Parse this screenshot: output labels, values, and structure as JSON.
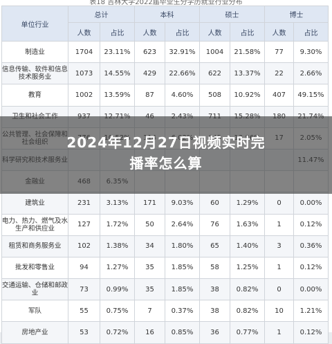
{
  "table": {
    "caption": "表18 吉林大学2022届毕业生分学历就业行业分布",
    "header_industry": "单位行业",
    "groups": [
      "总计",
      "本科",
      "硕士",
      "博士"
    ],
    "subheaders": [
      "人数",
      "占比"
    ],
    "rows": [
      {
        "industry": "制造业",
        "cells": [
          "1704",
          "23.11%",
          "623",
          "32.91%",
          "1004",
          "21.58%",
          "77",
          "9.30%"
        ]
      },
      {
        "industry": "信息传输、软件和信息技术服务业",
        "cells": [
          "1073",
          "14.55%",
          "429",
          "22.66%",
          "622",
          "13.37%",
          "22",
          "2.66%"
        ]
      },
      {
        "industry": "教育",
        "cells": [
          "1002",
          "13.59%",
          "87",
          "4.60%",
          "508",
          "10.92%",
          "407",
          "49.15%"
        ]
      },
      {
        "industry": "卫生和社会工作",
        "cells": [
          "937",
          "12.71%",
          "46",
          "2.43%",
          "711",
          "15.28%",
          "180",
          "21.74%"
        ]
      },
      {
        "industry": "公共管理、社会保障和社会组织",
        "cells": [
          "776",
          "10.52%",
          "114",
          "6.02%",
          "645",
          "13.86%",
          "17",
          "2.05%"
        ]
      },
      {
        "industry": "科学研究和技术服务业",
        "cells": [
          "",
          "",
          "",
          "",
          "",
          "",
          "",
          "11.47%"
        ]
      },
      {
        "industry": "金融业",
        "cells": [
          "468",
          "6.35%",
          "",
          "",
          "",
          "",
          "",
          ""
        ]
      },
      {
        "industry": "建筑业",
        "cells": [
          "231",
          "3.13%",
          "171",
          "9.03%",
          "60",
          "1.29%",
          "0",
          "0.00%"
        ]
      },
      {
        "industry": "电力、热力、燃气及水生产和供应业",
        "cells": [
          "127",
          "1.72%",
          "50",
          "2.64%",
          "76",
          "1.63%",
          "1",
          "0.12%"
        ]
      },
      {
        "industry": "租赁和商务服务业",
        "cells": [
          "102",
          "1.38%",
          "34",
          "1.80%",
          "65",
          "1.40%",
          "3",
          "0.36%"
        ]
      },
      {
        "industry": "批发和零售业",
        "cells": [
          "94",
          "1.27%",
          "35",
          "1.85%",
          "58",
          "1.25%",
          "1",
          "0.12%"
        ]
      },
      {
        "industry": "交通运输、仓储和邮政业",
        "cells": [
          "73",
          "0.99%",
          "35",
          "1.85%",
          "38",
          "0.82%",
          "0",
          "0.00%"
        ]
      },
      {
        "industry": "军队",
        "cells": [
          "55",
          "0.75%",
          "7",
          "0.37%",
          "38",
          "0.82%",
          "10",
          "1.21%"
        ]
      },
      {
        "industry": "房地产业",
        "cells": [
          "53",
          "0.72%",
          "16",
          "0.85%",
          "36",
          "0.77%",
          "1",
          "0.12%"
        ]
      }
    ]
  },
  "overlay": {
    "headline_line1": "2024年12月27日视频实时完",
    "headline_line2": "播率怎么算"
  }
}
